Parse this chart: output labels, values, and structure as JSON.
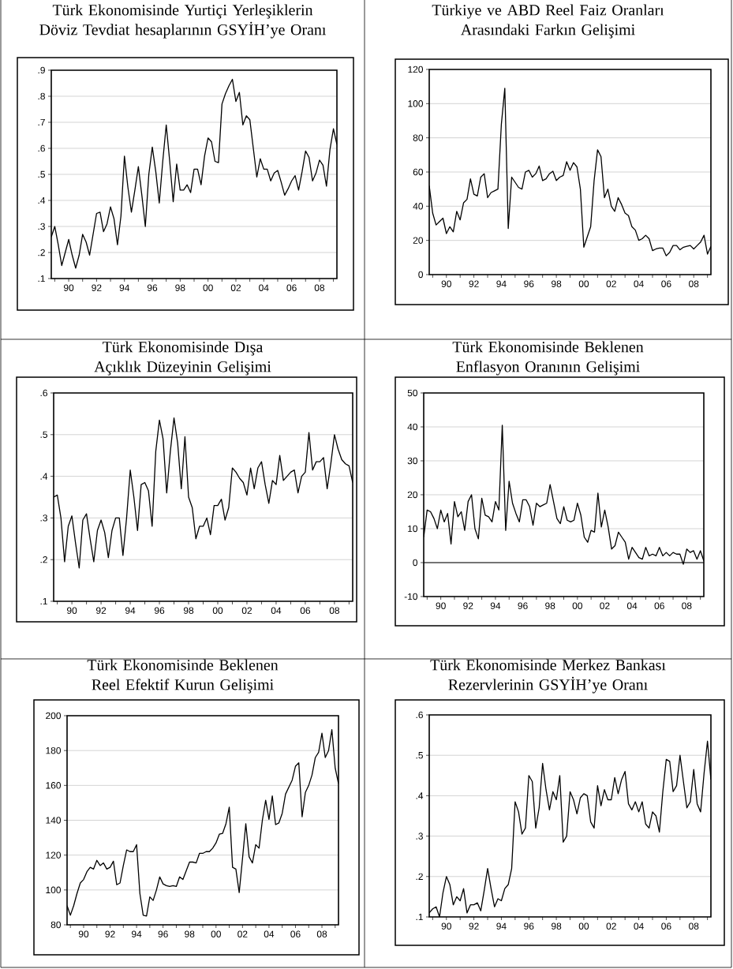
{
  "chart_data": [
    {
      "type": "line",
      "title": "Türk Ekonomisinde Yurtiçi Yerleşiklerin Döviz Tevdiat hesaplarının GSYİH’ye Oranı",
      "color": "#000000",
      "grid": "y",
      "xlim": [
        1988.75,
        2009.25
      ],
      "ylim": [
        0.1,
        0.9
      ],
      "yticks": [
        {
          "value": 0.1,
          "label": ".1"
        },
        {
          "value": 0.2,
          "label": ".2"
        },
        {
          "value": 0.3,
          "label": ".3"
        },
        {
          "value": 0.4,
          "label": ".4"
        },
        {
          "value": 0.5,
          "label": ".5"
        },
        {
          "value": 0.6,
          "label": ".6"
        },
        {
          "value": 0.7,
          "label": ".7"
        },
        {
          "value": 0.8,
          "label": ".8"
        },
        {
          "value": 0.9,
          "label": ".9"
        }
      ],
      "xticks": [
        {
          "value": 1989,
          "label": null
        },
        {
          "value": 1990,
          "label": "90"
        },
        {
          "value": 1991,
          "label": null
        },
        {
          "value": 1992,
          "label": "92"
        },
        {
          "value": 1993,
          "label": null
        },
        {
          "value": 1994,
          "label": "94"
        },
        {
          "value": 1995,
          "label": null
        },
        {
          "value": 1996,
          "label": "96"
        },
        {
          "value": 1997,
          "label": null
        },
        {
          "value": 1998,
          "label": "98"
        },
        {
          "value": 1999,
          "label": null
        },
        {
          "value": 2000,
          "label": "00"
        },
        {
          "value": 2001,
          "label": null
        },
        {
          "value": 2002,
          "label": "02"
        },
        {
          "value": 2003,
          "label": null
        },
        {
          "value": 2004,
          "label": "04"
        },
        {
          "value": 2005,
          "label": null
        },
        {
          "value": 2006,
          "label": "06"
        },
        {
          "value": 2007,
          "label": null
        },
        {
          "value": 2008,
          "label": "08"
        },
        {
          "value": 2009,
          "label": null
        }
      ],
      "x": [
        1988.75,
        1989,
        1989.25,
        1989.5,
        1989.75,
        1990,
        1990.25,
        1990.5,
        1990.75,
        1991,
        1991.25,
        1991.5,
        1991.75,
        1992,
        1992.25,
        1992.5,
        1992.75,
        1993,
        1993.25,
        1993.5,
        1993.75,
        1994,
        1994.25,
        1994.5,
        1994.75,
        1995,
        1995.25,
        1995.5,
        1995.75,
        1996,
        1996.25,
        1996.5,
        1996.75,
        1997,
        1997.25,
        1997.5,
        1997.75,
        1998,
        1998.25,
        1998.5,
        1998.75,
        1999,
        1999.25,
        1999.5,
        1999.75,
        2000,
        2000.25,
        2000.5,
        2000.75,
        2001,
        2001.25,
        2001.5,
        2001.75,
        2002,
        2002.25,
        2002.5,
        2002.75,
        2003,
        2003.25,
        2003.5,
        2003.75,
        2004,
        2004.25,
        2004.5,
        2004.75,
        2005,
        2005.25,
        2005.5,
        2005.75,
        2006,
        2006.25,
        2006.5,
        2006.75,
        2007,
        2007.25,
        2007.5,
        2007.75,
        2008,
        2008.25,
        2008.5,
        2008.75,
        2009,
        2009.25
      ],
      "values": [
        0.26,
        0.3,
        0.23,
        0.15,
        0.2,
        0.25,
        0.19,
        0.14,
        0.19,
        0.27,
        0.24,
        0.19,
        0.27,
        0.35,
        0.355,
        0.28,
        0.31,
        0.375,
        0.33,
        0.23,
        0.34,
        0.57,
        0.45,
        0.355,
        0.44,
        0.53,
        0.42,
        0.3,
        0.5,
        0.605,
        0.51,
        0.39,
        0.55,
        0.69,
        0.55,
        0.395,
        0.54,
        0.44,
        0.44,
        0.46,
        0.43,
        0.52,
        0.52,
        0.46,
        0.57,
        0.64,
        0.625,
        0.55,
        0.545,
        0.77,
        0.81,
        0.84,
        0.865,
        0.78,
        0.815,
        0.69,
        0.725,
        0.71,
        0.6,
        0.49,
        0.56,
        0.52,
        0.52,
        0.475,
        0.505,
        0.515,
        0.47,
        0.42,
        0.445,
        0.475,
        0.495,
        0.44,
        0.51,
        0.59,
        0.565,
        0.475,
        0.505,
        0.555,
        0.535,
        0.455,
        0.595,
        0.675,
        0.615
      ]
    },
    {
      "type": "line",
      "title": "Türkiye ve ABD Reel Faiz Oranları Arasındaki Farkın Gelişimi",
      "color": "#000000",
      "grid": "y",
      "xlim": [
        1988.75,
        2009.25
      ],
      "ylim": [
        0,
        120
      ],
      "yticks": [
        0,
        20,
        40,
        60,
        80,
        100,
        120
      ],
      "xticks": [
        {
          "value": 1989,
          "label": null
        },
        {
          "value": 1990,
          "label": "90"
        },
        {
          "value": 1991,
          "label": null
        },
        {
          "value": 1992,
          "label": "92"
        },
        {
          "value": 1993,
          "label": null
        },
        {
          "value": 1994,
          "label": "94"
        },
        {
          "value": 1995,
          "label": null
        },
        {
          "value": 1996,
          "label": "96"
        },
        {
          "value": 1997,
          "label": null
        },
        {
          "value": 1998,
          "label": "98"
        },
        {
          "value": 1999,
          "label": null
        },
        {
          "value": 2000,
          "label": "00"
        },
        {
          "value": 2001,
          "label": null
        },
        {
          "value": 2002,
          "label": "02"
        },
        {
          "value": 2003,
          "label": null
        },
        {
          "value": 2004,
          "label": "04"
        },
        {
          "value": 2005,
          "label": null
        },
        {
          "value": 2006,
          "label": "06"
        },
        {
          "value": 2007,
          "label": null
        },
        {
          "value": 2008,
          "label": "08"
        },
        {
          "value": 2009,
          "label": null
        }
      ],
      "x": [
        1988.75,
        1989,
        1989.25,
        1989.5,
        1989.75,
        1990,
        1990.25,
        1990.5,
        1990.75,
        1991,
        1991.25,
        1991.5,
        1991.75,
        1992,
        1992.25,
        1992.5,
        1992.75,
        1993,
        1993.25,
        1993.5,
        1993.75,
        1994,
        1994.25,
        1994.5,
        1994.75,
        1995,
        1995.25,
        1995.5,
        1995.75,
        1996,
        1996.25,
        1996.5,
        1996.75,
        1997,
        1997.25,
        1997.5,
        1997.75,
        1998,
        1998.25,
        1998.5,
        1998.75,
        1999,
        1999.25,
        1999.5,
        1999.75,
        2000,
        2000.25,
        2000.5,
        2000.75,
        2001,
        2001.25,
        2001.5,
        2001.75,
        2002,
        2002.25,
        2002.5,
        2002.75,
        2003,
        2003.25,
        2003.5,
        2003.75,
        2004,
        2004.25,
        2004.5,
        2004.75,
        2005,
        2005.25,
        2005.5,
        2005.75,
        2006,
        2006.25,
        2006.5,
        2006.75,
        2007,
        2007.25,
        2007.5,
        2007.75,
        2008,
        2008.25,
        2008.5,
        2008.75,
        2009,
        2009.25
      ],
      "values": [
        52,
        36,
        29,
        31,
        33,
        24,
        28,
        25,
        37,
        32,
        42,
        44,
        56,
        47,
        46,
        57,
        59,
        45,
        48,
        49,
        50,
        88,
        109,
        27,
        57,
        54,
        51,
        50,
        60,
        61,
        57,
        59,
        63.5,
        55,
        56,
        59,
        60.5,
        55,
        57,
        58,
        66,
        61,
        65.5,
        63,
        50,
        16,
        22,
        28,
        55,
        73,
        69,
        45,
        50,
        40,
        37,
        45,
        41,
        36,
        34.5,
        28,
        26,
        20,
        21,
        23,
        21,
        14,
        15,
        15.5,
        15.5,
        11,
        13,
        17,
        17,
        14.5,
        16,
        16.5,
        17,
        15,
        17,
        19,
        23,
        12,
        16.5
      ]
    },
    {
      "type": "line",
      "title": "Türk Ekonomisinde Dışa Açıklık Düzeyinin Gelişimi",
      "color": "#000000",
      "grid": "y",
      "xlim": [
        1988.75,
        2009.25
      ],
      "ylim": [
        0.1,
        0.6
      ],
      "yticks": [
        {
          "value": 0.1,
          "label": ".1"
        },
        {
          "value": 0.2,
          "label": ".2"
        },
        {
          "value": 0.3,
          "label": ".3"
        },
        {
          "value": 0.4,
          "label": ".4"
        },
        {
          "value": 0.5,
          "label": ".5"
        },
        {
          "value": 0.6,
          "label": ".6"
        }
      ],
      "xticks": [
        {
          "value": 1989,
          "label": null
        },
        {
          "value": 1990,
          "label": "90"
        },
        {
          "value": 1991,
          "label": null
        },
        {
          "value": 1992,
          "label": "92"
        },
        {
          "value": 1993,
          "label": null
        },
        {
          "value": 1994,
          "label": "94"
        },
        {
          "value": 1995,
          "label": null
        },
        {
          "value": 1996,
          "label": "96"
        },
        {
          "value": 1997,
          "label": null
        },
        {
          "value": 1998,
          "label": "98"
        },
        {
          "value": 1999,
          "label": null
        },
        {
          "value": 2000,
          "label": "00"
        },
        {
          "value": 2001,
          "label": null
        },
        {
          "value": 2002,
          "label": "02"
        },
        {
          "value": 2003,
          "label": null
        },
        {
          "value": 2004,
          "label": "04"
        },
        {
          "value": 2005,
          "label": null
        },
        {
          "value": 2006,
          "label": "06"
        },
        {
          "value": 2007,
          "label": null
        },
        {
          "value": 2008,
          "label": "08"
        },
        {
          "value": 2009,
          "label": null
        }
      ],
      "x": [
        1988.75,
        1989,
        1989.25,
        1989.5,
        1989.75,
        1990,
        1990.25,
        1990.5,
        1990.75,
        1991,
        1991.25,
        1991.5,
        1991.75,
        1992,
        1992.25,
        1992.5,
        1992.75,
        1993,
        1993.25,
        1993.5,
        1993.75,
        1994,
        1994.25,
        1994.5,
        1994.75,
        1995,
        1995.25,
        1995.5,
        1995.75,
        1996,
        1996.25,
        1996.5,
        1996.75,
        1997,
        1997.25,
        1997.5,
        1997.75,
        1998,
        1998.25,
        1998.5,
        1998.75,
        1999,
        1999.25,
        1999.5,
        1999.75,
        2000,
        2000.25,
        2000.5,
        2000.75,
        2001,
        2001.25,
        2001.5,
        2001.75,
        2002,
        2002.25,
        2002.5,
        2002.75,
        2003,
        2003.25,
        2003.5,
        2003.75,
        2004,
        2004.25,
        2004.5,
        2004.75,
        2005,
        2005.25,
        2005.5,
        2005.75,
        2006,
        2006.25,
        2006.5,
        2006.75,
        2007,
        2007.25,
        2007.5,
        2007.75,
        2008,
        2008.25,
        2008.5,
        2008.75,
        2009,
        2009.25
      ],
      "values": [
        0.35,
        0.355,
        0.3,
        0.195,
        0.28,
        0.305,
        0.24,
        0.18,
        0.295,
        0.31,
        0.25,
        0.195,
        0.27,
        0.295,
        0.265,
        0.205,
        0.27,
        0.3,
        0.3,
        0.21,
        0.3,
        0.415,
        0.35,
        0.27,
        0.38,
        0.385,
        0.365,
        0.28,
        0.46,
        0.535,
        0.49,
        0.36,
        0.46,
        0.54,
        0.48,
        0.37,
        0.495,
        0.35,
        0.325,
        0.25,
        0.28,
        0.28,
        0.3,
        0.26,
        0.33,
        0.33,
        0.345,
        0.295,
        0.325,
        0.42,
        0.41,
        0.395,
        0.385,
        0.355,
        0.42,
        0.37,
        0.42,
        0.435,
        0.38,
        0.335,
        0.39,
        0.38,
        0.45,
        0.39,
        0.4,
        0.41,
        0.415,
        0.36,
        0.4,
        0.41,
        0.505,
        0.415,
        0.435,
        0.435,
        0.445,
        0.37,
        0.43,
        0.5,
        0.465,
        0.44,
        0.43,
        0.425,
        0.385
      ]
    },
    {
      "type": "line",
      "title": "Türk Ekonomisinde Beklenen Enflasyon Oranının Gelişimi",
      "color": "#000000",
      "grid": "y",
      "xlim": [
        1988.75,
        2009.25
      ],
      "ylim": [
        -10,
        50
      ],
      "yticks": [
        -10,
        0,
        10,
        20,
        30,
        40,
        50
      ],
      "ref_lines": [
        {
          "axis": "y",
          "value": 0
        }
      ],
      "xticks": [
        {
          "value": 1989,
          "label": null
        },
        {
          "value": 1990,
          "label": "90"
        },
        {
          "value": 1991,
          "label": null
        },
        {
          "value": 1992,
          "label": "92"
        },
        {
          "value": 1993,
          "label": null
        },
        {
          "value": 1994,
          "label": "94"
        },
        {
          "value": 1995,
          "label": null
        },
        {
          "value": 1996,
          "label": "96"
        },
        {
          "value": 1997,
          "label": null
        },
        {
          "value": 1998,
          "label": "98"
        },
        {
          "value": 1999,
          "label": null
        },
        {
          "value": 2000,
          "label": "00"
        },
        {
          "value": 2001,
          "label": null
        },
        {
          "value": 2002,
          "label": "02"
        },
        {
          "value": 2003,
          "label": null
        },
        {
          "value": 2004,
          "label": "04"
        },
        {
          "value": 2005,
          "label": null
        },
        {
          "value": 2006,
          "label": "06"
        },
        {
          "value": 2007,
          "label": null
        },
        {
          "value": 2008,
          "label": "08"
        },
        {
          "value": 2009,
          "label": null
        }
      ],
      "x": [
        1988.75,
        1989,
        1989.25,
        1989.5,
        1989.75,
        1990,
        1990.25,
        1990.5,
        1990.75,
        1991,
        1991.25,
        1991.5,
        1991.75,
        1992,
        1992.25,
        1992.5,
        1992.75,
        1993,
        1993.25,
        1993.5,
        1993.75,
        1994,
        1994.25,
        1994.5,
        1994.75,
        1995,
        1995.25,
        1995.5,
        1995.75,
        1996,
        1996.25,
        1996.5,
        1996.75,
        1997,
        1997.25,
        1997.5,
        1997.75,
        1998,
        1998.25,
        1998.5,
        1998.75,
        1999,
        1999.25,
        1999.5,
        1999.75,
        2000,
        2000.25,
        2000.5,
        2000.75,
        2001,
        2001.25,
        2001.5,
        2001.75,
        2002,
        2002.25,
        2002.5,
        2002.75,
        2003,
        2003.25,
        2003.5,
        2003.75,
        2004,
        2004.25,
        2004.5,
        2004.75,
        2005,
        2005.25,
        2005.5,
        2005.75,
        2006,
        2006.25,
        2006.5,
        2006.75,
        2007,
        2007.25,
        2007.5,
        2007.75,
        2008,
        2008.25,
        2008.5,
        2008.75,
        2009,
        2009.25
      ],
      "values": [
        7.5,
        15.5,
        15,
        13,
        10,
        15.5,
        12,
        14.5,
        5.5,
        18,
        13.5,
        15,
        9.5,
        18,
        20,
        10,
        7,
        19,
        14,
        13.5,
        12,
        18,
        15.5,
        40.5,
        9.5,
        24,
        17.5,
        14.5,
        12,
        18.5,
        18.5,
        16.5,
        11,
        17.5,
        16.5,
        17,
        17.5,
        23,
        18,
        13,
        11.5,
        16.5,
        12.5,
        12,
        12.5,
        17.5,
        14,
        7.5,
        6,
        9.5,
        9,
        20.5,
        10.5,
        15.5,
        10.5,
        4,
        5,
        9,
        7.5,
        6,
        1,
        4.5,
        3,
        1.5,
        1,
        4.5,
        2,
        2.5,
        2,
        4.5,
        2,
        3,
        2,
        3,
        2.5,
        2.5,
        -0.5,
        4,
        3,
        3.5,
        1,
        3.5,
        0.5
      ]
    },
    {
      "type": "line",
      "title": "Türk Ekonomisinde Beklenen Reel Efektif Kurun Gelişimi",
      "color": "#000000",
      "grid": "y",
      "xlim": [
        1988.75,
        2009.25
      ],
      "ylim": [
        80,
        200
      ],
      "yticks": [
        80,
        100,
        120,
        140,
        160,
        180,
        200
      ],
      "xticks": [
        {
          "value": 1989,
          "label": null
        },
        {
          "value": 1990,
          "label": "90"
        },
        {
          "value": 1991,
          "label": null
        },
        {
          "value": 1992,
          "label": "92"
        },
        {
          "value": 1993,
          "label": null
        },
        {
          "value": 1994,
          "label": "94"
        },
        {
          "value": 1995,
          "label": null
        },
        {
          "value": 1996,
          "label": "96"
        },
        {
          "value": 1997,
          "label": null
        },
        {
          "value": 1998,
          "label": "98"
        },
        {
          "value": 1999,
          "label": null
        },
        {
          "value": 2000,
          "label": "00"
        },
        {
          "value": 2001,
          "label": null
        },
        {
          "value": 2002,
          "label": "02"
        },
        {
          "value": 2003,
          "label": null
        },
        {
          "value": 2004,
          "label": "04"
        },
        {
          "value": 2005,
          "label": null
        },
        {
          "value": 2006,
          "label": "06"
        },
        {
          "value": 2007,
          "label": null
        },
        {
          "value": 2008,
          "label": "08"
        },
        {
          "value": 2009,
          "label": null
        }
      ],
      "x": [
        1988.75,
        1989,
        1989.25,
        1989.5,
        1989.75,
        1990,
        1990.25,
        1990.5,
        1990.75,
        1991,
        1991.25,
        1991.5,
        1991.75,
        1992,
        1992.25,
        1992.5,
        1992.75,
        1993,
        1993.25,
        1993.5,
        1993.75,
        1994,
        1994.25,
        1994.5,
        1994.75,
        1995,
        1995.25,
        1995.5,
        1995.75,
        1996,
        1996.25,
        1996.5,
        1996.75,
        1997,
        1997.25,
        1997.5,
        1997.75,
        1998,
        1998.25,
        1998.5,
        1998.75,
        1999,
        1999.25,
        1999.5,
        1999.75,
        2000,
        2000.25,
        2000.5,
        2000.75,
        2001,
        2001.25,
        2001.5,
        2001.75,
        2002,
        2002.25,
        2002.5,
        2002.75,
        2003,
        2003.25,
        2003.5,
        2003.75,
        2004,
        2004.25,
        2004.5,
        2004.75,
        2005,
        2005.25,
        2005.5,
        2005.75,
        2006,
        2006.25,
        2006.5,
        2006.75,
        2007,
        2007.25,
        2007.5,
        2007.75,
        2008,
        2008.25,
        2008.5,
        2008.75,
        2009,
        2009.25
      ],
      "values": [
        91,
        85.5,
        91,
        98,
        104,
        106,
        110.5,
        113,
        112,
        117,
        114,
        115.5,
        112,
        113,
        116.5,
        103,
        104,
        114,
        123,
        122,
        122,
        126,
        98,
        85.5,
        85,
        96,
        94,
        100,
        107.5,
        103.5,
        102.5,
        102,
        102.5,
        102,
        107.5,
        106,
        111,
        116,
        116,
        115.5,
        121,
        121,
        122,
        122,
        124,
        127,
        132,
        132.5,
        138,
        147.5,
        113,
        112,
        98.5,
        118,
        138,
        119,
        115.5,
        126,
        124,
        140,
        151.5,
        140.5,
        154,
        137.5,
        138.5,
        144,
        155,
        159,
        163,
        171,
        173,
        142,
        156,
        160,
        166,
        176,
        179,
        190,
        176,
        180,
        192,
        170,
        161
      ]
    },
    {
      "type": "line",
      "title": "Türk Ekonomisinde Merkez Bankası Rezervlerinin GSYİH’ye Oranı",
      "color": "#000000",
      "grid": "y",
      "xlim": [
        1988.75,
        2009.25
      ],
      "ylim": [
        0.1,
        0.6
      ],
      "yticks": [
        {
          "value": 0.1,
          "label": ".1"
        },
        {
          "value": 0.2,
          "label": ".2"
        },
        {
          "value": 0.3,
          "label": ".3"
        },
        {
          "value": 0.4,
          "label": ".4"
        },
        {
          "value": 0.5,
          "label": ".5"
        },
        {
          "value": 0.6,
          "label": ".6"
        }
      ],
      "xticks": [
        {
          "value": 1989,
          "label": null
        },
        {
          "value": 1990,
          "label": "90"
        },
        {
          "value": 1991,
          "label": null
        },
        {
          "value": 1992,
          "label": "92"
        },
        {
          "value": 1993,
          "label": null
        },
        {
          "value": 1994,
          "label": "94"
        },
        {
          "value": 1995,
          "label": null
        },
        {
          "value": 1996,
          "label": "96"
        },
        {
          "value": 1997,
          "label": null
        },
        {
          "value": 1998,
          "label": "98"
        },
        {
          "value": 1999,
          "label": null
        },
        {
          "value": 2000,
          "label": "00"
        },
        {
          "value": 2001,
          "label": null
        },
        {
          "value": 2002,
          "label": "02"
        },
        {
          "value": 2003,
          "label": null
        },
        {
          "value": 2004,
          "label": "04"
        },
        {
          "value": 2005,
          "label": null
        },
        {
          "value": 2006,
          "label": "06"
        },
        {
          "value": 2007,
          "label": null
        },
        {
          "value": 2008,
          "label": "08"
        },
        {
          "value": 2009,
          "label": null
        }
      ],
      "x": [
        1988.75,
        1989,
        1989.25,
        1989.5,
        1989.75,
        1990,
        1990.25,
        1990.5,
        1990.75,
        1991,
        1991.25,
        1991.5,
        1991.75,
        1992,
        1992.25,
        1992.5,
        1992.75,
        1993,
        1993.25,
        1993.5,
        1993.75,
        1994,
        1994.25,
        1994.5,
        1994.75,
        1995,
        1995.25,
        1995.5,
        1995.75,
        1996,
        1996.25,
        1996.5,
        1996.75,
        1997,
        1997.25,
        1997.5,
        1997.75,
        1998,
        1998.25,
        1998.5,
        1998.75,
        1999,
        1999.25,
        1999.5,
        1999.75,
        2000,
        2000.25,
        2000.5,
        2000.75,
        2001,
        2001.25,
        2001.5,
        2001.75,
        2002,
        2002.25,
        2002.5,
        2002.75,
        2003,
        2003.25,
        2003.5,
        2003.75,
        2004,
        2004.25,
        2004.5,
        2004.75,
        2005,
        2005.25,
        2005.5,
        2005.75,
        2006,
        2006.25,
        2006.5,
        2006.75,
        2007,
        2007.25,
        2007.5,
        2007.75,
        2008,
        2008.25,
        2008.5,
        2008.75,
        2009,
        2009.25
      ],
      "values": [
        0.11,
        0.12,
        0.125,
        0.1,
        0.16,
        0.2,
        0.18,
        0.13,
        0.15,
        0.14,
        0.17,
        0.11,
        0.13,
        0.13,
        0.135,
        0.115,
        0.165,
        0.22,
        0.17,
        0.125,
        0.145,
        0.14,
        0.17,
        0.18,
        0.22,
        0.385,
        0.36,
        0.305,
        0.32,
        0.45,
        0.435,
        0.32,
        0.37,
        0.48,
        0.415,
        0.365,
        0.41,
        0.39,
        0.45,
        0.285,
        0.3,
        0.41,
        0.39,
        0.355,
        0.395,
        0.405,
        0.4,
        0.335,
        0.32,
        0.425,
        0.375,
        0.415,
        0.39,
        0.39,
        0.445,
        0.405,
        0.44,
        0.46,
        0.38,
        0.365,
        0.385,
        0.36,
        0.385,
        0.33,
        0.32,
        0.36,
        0.35,
        0.31,
        0.41,
        0.49,
        0.485,
        0.41,
        0.425,
        0.5,
        0.435,
        0.37,
        0.385,
        0.465,
        0.38,
        0.36,
        0.455,
        0.535,
        0.44
      ]
    }
  ]
}
